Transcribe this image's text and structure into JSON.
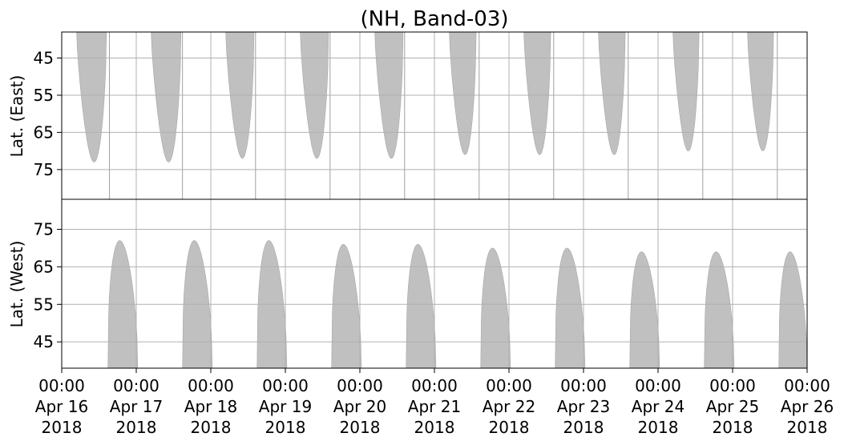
{
  "chart_data": {
    "type": "heatmap",
    "title": "(NH, Band-03)",
    "x": {
      "range": [
        "2018-04-16T00:00",
        "2018-04-26T00:00"
      ],
      "ticks": [
        {
          "time": "00:00",
          "date": "Apr 16",
          "year": "2018"
        },
        {
          "time": "00:00",
          "date": "Apr 17",
          "year": "2018"
        },
        {
          "time": "00:00",
          "date": "Apr 18",
          "year": "2018"
        },
        {
          "time": "00:00",
          "date": "Apr 19",
          "year": "2018"
        },
        {
          "time": "00:00",
          "date": "Apr 20",
          "year": "2018"
        },
        {
          "time": "00:00",
          "date": "Apr 21",
          "year": "2018"
        },
        {
          "time": "00:00",
          "date": "Apr 22",
          "year": "2018"
        },
        {
          "time": "00:00",
          "date": "Apr 23",
          "year": "2018"
        },
        {
          "time": "00:00",
          "date": "Apr 24",
          "year": "2018"
        },
        {
          "time": "00:00",
          "date": "Apr 25",
          "year": "2018"
        },
        {
          "time": "00:00",
          "date": "Apr 26",
          "year": "2018"
        }
      ]
    },
    "panels": [
      {
        "name": "east",
        "ylabel": "Lat. (East)",
        "ylim": [
          38,
          83
        ],
        "inverted": true,
        "yticks": [
          45,
          55,
          65,
          75
        ],
        "coverage": [
          {
            "start_day": 0.2,
            "end_day": 0.6,
            "min_lat": 38,
            "max_lat": 73
          },
          {
            "start_day": 1.2,
            "end_day": 1.6,
            "min_lat": 38,
            "max_lat": 73
          },
          {
            "start_day": 2.2,
            "end_day": 2.58,
            "min_lat": 38,
            "max_lat": 72
          },
          {
            "start_day": 3.2,
            "end_day": 3.58,
            "min_lat": 38,
            "max_lat": 72
          },
          {
            "start_day": 4.2,
            "end_day": 4.58,
            "min_lat": 38,
            "max_lat": 72
          },
          {
            "start_day": 5.2,
            "end_day": 5.56,
            "min_lat": 38,
            "max_lat": 71
          },
          {
            "start_day": 6.2,
            "end_day": 6.56,
            "min_lat": 38,
            "max_lat": 71
          },
          {
            "start_day": 7.2,
            "end_day": 7.56,
            "min_lat": 38,
            "max_lat": 71
          },
          {
            "start_day": 8.2,
            "end_day": 8.55,
            "min_lat": 38,
            "max_lat": 70
          },
          {
            "start_day": 9.2,
            "end_day": 9.55,
            "min_lat": 38,
            "max_lat": 70
          }
        ],
        "gaps": [
          0.64,
          1.62,
          2.6,
          3.6,
          4.6,
          5.6,
          6.6,
          7.6,
          8.6,
          9.6
        ]
      },
      {
        "name": "west",
        "ylabel": "Lat. (West)",
        "ylim": [
          38,
          83
        ],
        "inverted": false,
        "yticks": [
          45,
          55,
          65,
          75
        ],
        "coverage": [
          {
            "start_day": 0.62,
            "end_day": 1.02,
            "min_lat": 38,
            "max_lat": 72
          },
          {
            "start_day": 1.62,
            "end_day": 2.02,
            "min_lat": 38,
            "max_lat": 72
          },
          {
            "start_day": 2.62,
            "end_day": 3.02,
            "min_lat": 38,
            "max_lat": 72
          },
          {
            "start_day": 3.62,
            "end_day": 4.02,
            "min_lat": 38,
            "max_lat": 71
          },
          {
            "start_day": 4.62,
            "end_day": 5.02,
            "min_lat": 38,
            "max_lat": 71
          },
          {
            "start_day": 5.62,
            "end_day": 6.02,
            "min_lat": 38,
            "max_lat": 70
          },
          {
            "start_day": 6.62,
            "end_day": 7.02,
            "min_lat": 38,
            "max_lat": 70
          },
          {
            "start_day": 7.62,
            "end_day": 8.02,
            "min_lat": 38,
            "max_lat": 69
          },
          {
            "start_day": 8.62,
            "end_day": 9.02,
            "min_lat": 38,
            "max_lat": 69
          },
          {
            "start_day": 9.62,
            "end_day": 10.0,
            "min_lat": 38,
            "max_lat": 69
          }
        ]
      }
    ],
    "colors": {
      "coverage": "#c0c0c0",
      "grid": "#b0b0b0",
      "axis": "#000000"
    },
    "grid": true
  }
}
